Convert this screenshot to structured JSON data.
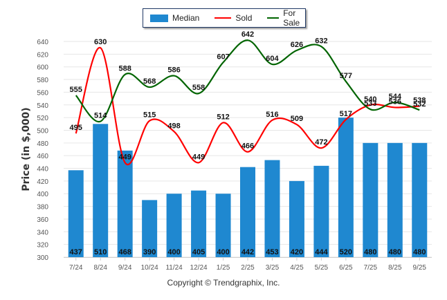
{
  "chart_data": {
    "type": "bar",
    "title": "",
    "xlabel": "",
    "ylabel": "Price (in $,000)",
    "ylim": [
      300,
      640
    ],
    "yticks": [
      300,
      320,
      340,
      360,
      380,
      400,
      420,
      440,
      460,
      480,
      500,
      520,
      540,
      560,
      580,
      600,
      620,
      640
    ],
    "grid": true,
    "legend_position": "top-center",
    "categories": [
      "7/24",
      "8/24",
      "9/24",
      "10/24",
      "11/24",
      "12/24",
      "1/25",
      "2/25",
      "3/25",
      "4/25",
      "5/25",
      "6/25",
      "7/25",
      "8/25",
      "9/25"
    ],
    "series": [
      {
        "name": "Median",
        "type": "bar",
        "color": "#1f88d0",
        "values": [
          437,
          510,
          468,
          390,
          400,
          405,
          400,
          442,
          453,
          420,
          444,
          520,
          480,
          480,
          480
        ]
      },
      {
        "name": "Sold",
        "type": "line",
        "color": "#ff0000",
        "values": [
          495,
          630,
          449,
          515,
          498,
          449,
          512,
          466,
          516,
          509,
          472,
          517,
          540,
          536,
          538
        ]
      },
      {
        "name": "For Sale",
        "type": "line",
        "color": "#006400",
        "values": [
          555,
          514,
          588,
          568,
          586,
          558,
          607,
          642,
          604,
          626,
          632,
          577,
          533,
          544,
          532
        ]
      }
    ]
  },
  "legend": {
    "items": [
      {
        "label": "Median",
        "kind": "bar",
        "color": "#1f88d0"
      },
      {
        "label": "Sold",
        "kind": "line",
        "color": "#ff0000"
      },
      {
        "label": "For Sale",
        "kind": "line",
        "color": "#006400"
      }
    ]
  },
  "footer": {
    "copyright": "Copyright © Trendgraphix, Inc."
  }
}
